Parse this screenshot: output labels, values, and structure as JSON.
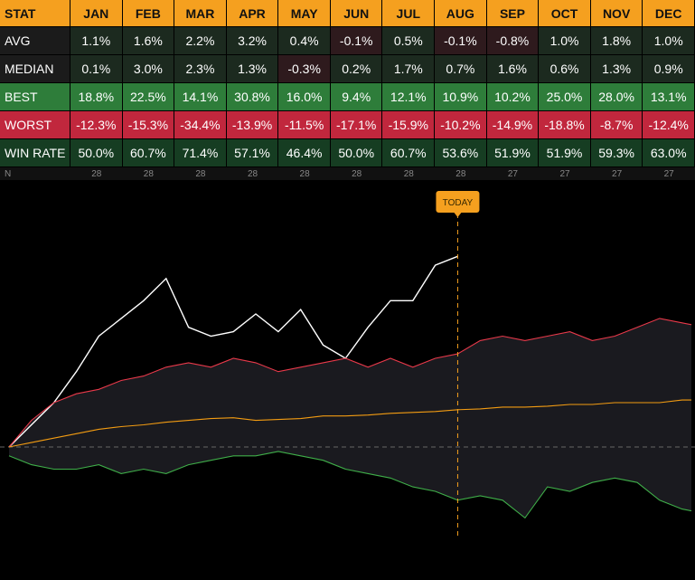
{
  "table": {
    "header": [
      "STAT",
      "JAN",
      "FEB",
      "MAR",
      "APR",
      "MAY",
      "JUN",
      "JUL",
      "AUG",
      "SEP",
      "OCT",
      "NOV",
      "DEC"
    ],
    "rows": [
      [
        "AVG",
        "1.1%",
        "1.6%",
        "2.2%",
        "3.2%",
        "0.4%",
        "-0.1%",
        "0.5%",
        "-0.1%",
        "-0.8%",
        "1.0%",
        "1.8%",
        "1.0%"
      ],
      [
        "MEDIAN",
        "0.1%",
        "3.0%",
        "2.3%",
        "1.3%",
        "-0.3%",
        "0.2%",
        "1.7%",
        "0.7%",
        "1.6%",
        "0.6%",
        "1.3%",
        "0.9%"
      ],
      [
        "BEST",
        "18.8%",
        "22.5%",
        "14.1%",
        "30.8%",
        "16.0%",
        "9.4%",
        "12.1%",
        "10.9%",
        "10.2%",
        "25.0%",
        "28.0%",
        "13.1%"
      ],
      [
        "WORST",
        "-12.3%",
        "-15.3%",
        "-34.4%",
        "-13.9%",
        "-11.5%",
        "-17.1%",
        "-15.9%",
        "-10.2%",
        "-14.9%",
        "-18.8%",
        "-8.7%",
        "-12.4%"
      ],
      [
        "WIN RATE",
        "50.0%",
        "60.7%",
        "71.4%",
        "57.1%",
        "46.4%",
        "50.0%",
        "60.7%",
        "53.6%",
        "51.9%",
        "51.9%",
        "59.3%",
        "63.0%"
      ]
    ],
    "row_colors": [
      "tint",
      "tint",
      "#2e7d3a",
      "#c1273d",
      "#163d22"
    ],
    "n_row": [
      "N",
      "28",
      "28",
      "28",
      "28",
      "28",
      "28",
      "28",
      "28",
      "27",
      "27",
      "27",
      "27"
    ]
  },
  "chart_data": {
    "type": "line",
    "x": [
      0,
      12,
      24,
      36,
      48,
      60,
      72,
      84,
      96,
      108,
      120,
      132,
      144,
      156,
      168,
      180,
      192,
      204,
      216,
      228,
      240,
      252,
      264,
      276,
      288,
      300,
      312,
      324,
      336,
      348,
      360,
      365
    ],
    "xlim": [
      0,
      365
    ],
    "ylim": [
      -15,
      30
    ],
    "baseline": 0,
    "today": {
      "label": "TODAY",
      "x": 240
    },
    "series": [
      {
        "color": "#ffffff",
        "values": [
          0,
          2.5,
          5,
          8.5,
          12.5,
          14.5,
          16.5,
          19,
          13.5,
          12.5,
          13,
          15,
          13,
          15.5,
          11.5,
          10,
          13.5,
          16.5,
          16.5,
          20.5,
          21.5,
          null,
          null,
          null,
          null,
          null,
          null,
          null,
          null,
          null,
          null,
          null
        ]
      },
      {
        "color": "#e8394a",
        "values": [
          0,
          3,
          5,
          6,
          6.5,
          7.5,
          8,
          9,
          9.5,
          9,
          10,
          9.5,
          8.5,
          9,
          9.5,
          10,
          9,
          10,
          9,
          10,
          10.5,
          12,
          12.5,
          12,
          12.5,
          13,
          12,
          12.5,
          13.5,
          14.5,
          14,
          13.8
        ]
      },
      {
        "color": "#f39c12",
        "values": [
          0,
          0.5,
          1,
          1.5,
          2,
          2.3,
          2.5,
          2.8,
          3,
          3.2,
          3.3,
          3,
          3.1,
          3.2,
          3.5,
          3.5,
          3.6,
          3.8,
          3.9,
          4,
          4.2,
          4.3,
          4.5,
          4.5,
          4.6,
          4.8,
          4.8,
          5,
          5,
          5,
          5.3,
          5.3
        ]
      },
      {
        "color": "#3fae49",
        "values": [
          -1,
          -2,
          -2.5,
          -2.5,
          -2,
          -3,
          -2.5,
          -3,
          -2,
          -1.5,
          -1,
          -1,
          -0.5,
          -1,
          -1.5,
          -2.5,
          -3,
          -3.5,
          -4.5,
          -5,
          -6,
          -5.5,
          -6,
          -8,
          -4.5,
          -5,
          -4,
          -3.5,
          -4,
          -6,
          -7,
          -7.2
        ]
      }
    ]
  }
}
